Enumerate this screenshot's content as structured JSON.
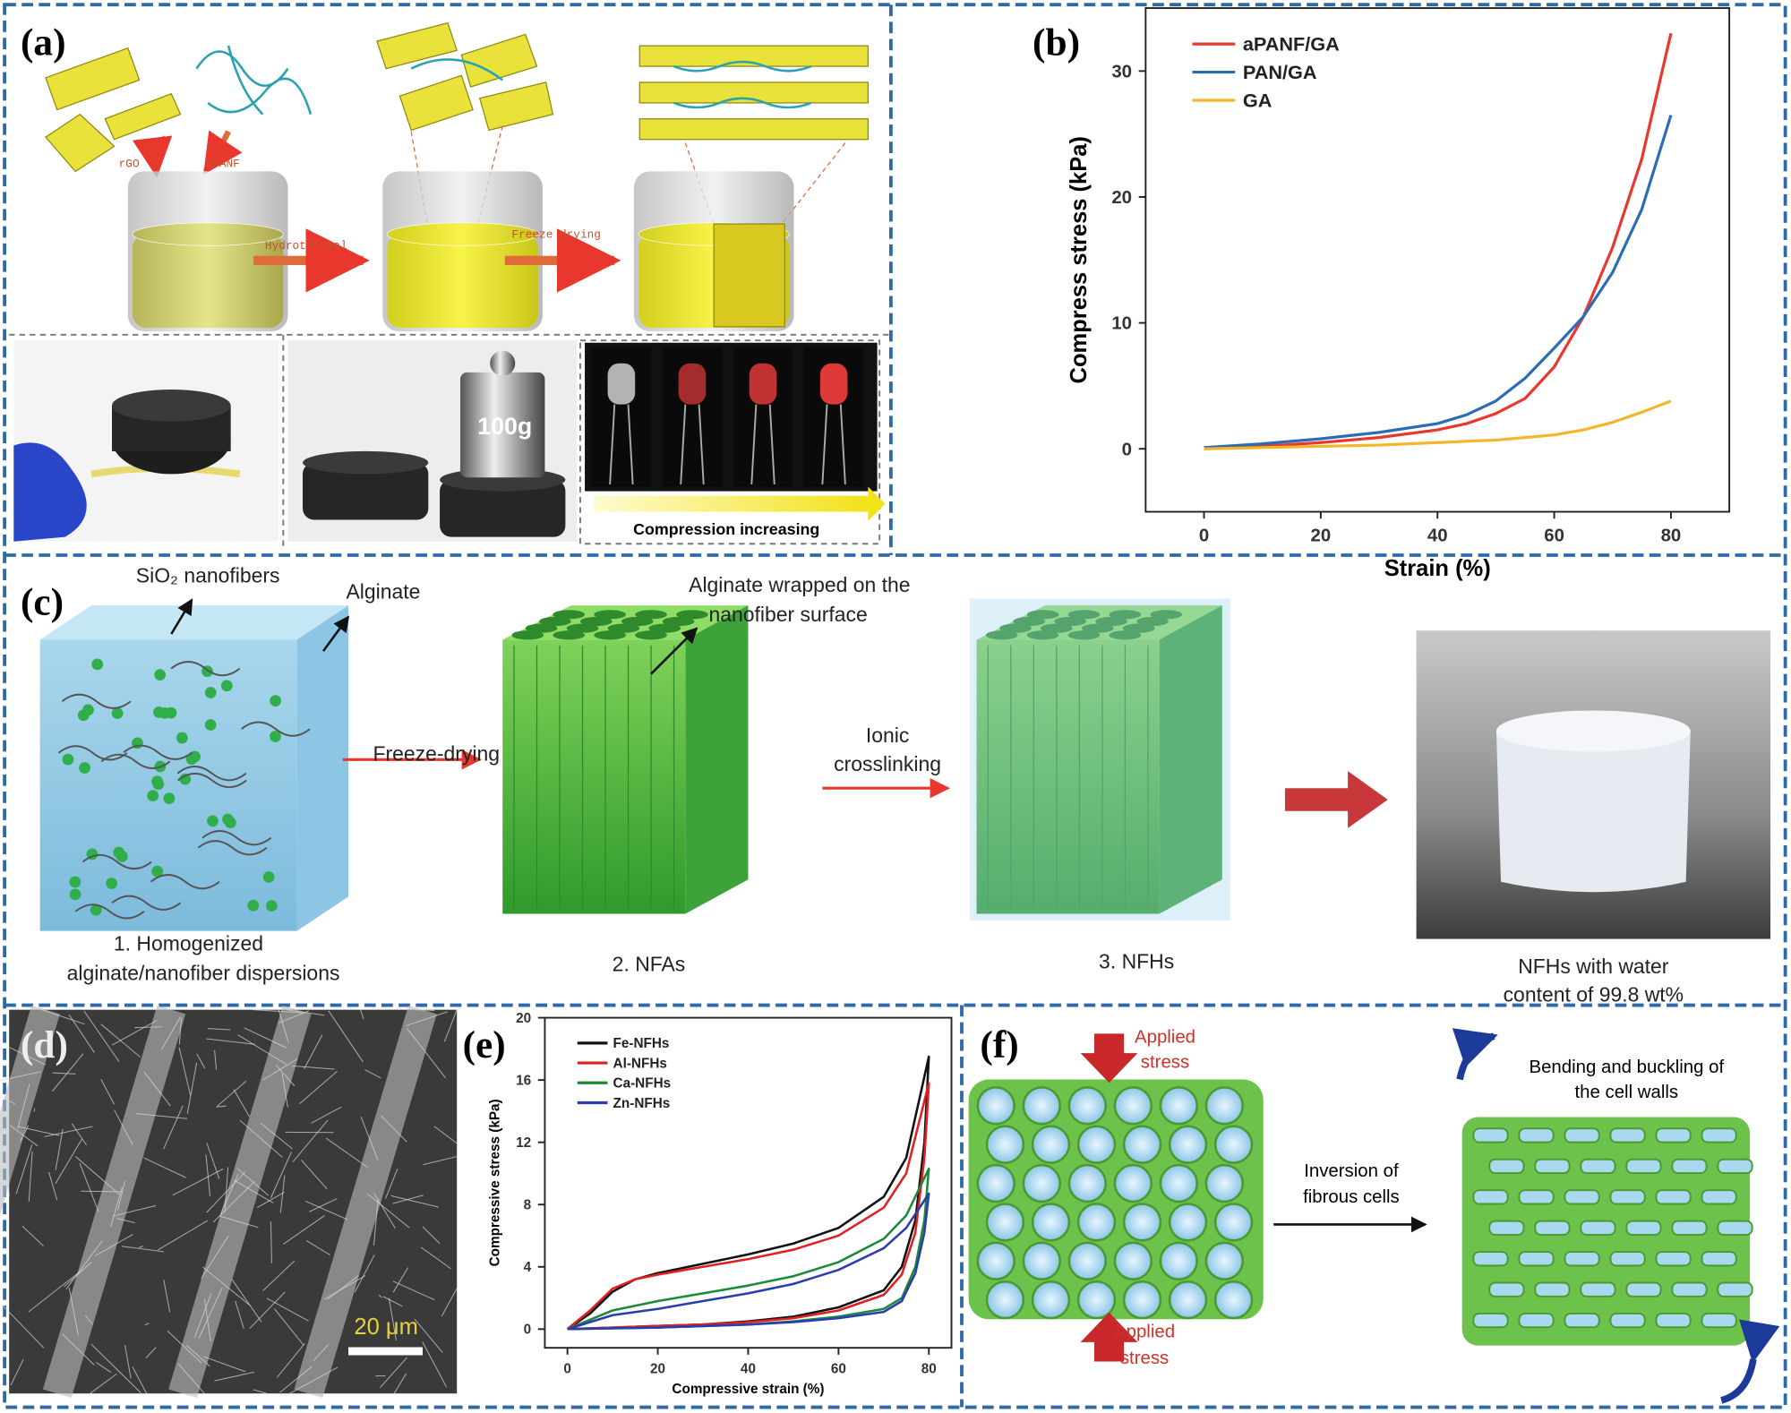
{
  "chart_data": [
    {
      "type": "line",
      "xlabel": "Strain (%)",
      "ylabel": "Compress stress (kPa)",
      "x": [
        0,
        10,
        20,
        30,
        40,
        45,
        50,
        55,
        60,
        65,
        70,
        75,
        80
      ],
      "series": [
        {
          "name": "aPANF/GA",
          "color": "#e8372c",
          "values": [
            0,
            0.2,
            0.5,
            0.9,
            1.5,
            2,
            2.8,
            4,
            6.5,
            10.5,
            16,
            23,
            33
          ]
        },
        {
          "name": "PAN/GA",
          "color": "#2a6db5",
          "values": [
            0.1,
            0.4,
            0.8,
            1.3,
            2,
            2.7,
            3.8,
            5.6,
            8,
            10.5,
            14,
            19,
            26.5
          ]
        },
        {
          "name": "GA",
          "color": "#f5b52b",
          "values": [
            0,
            0.1,
            0.2,
            0.3,
            0.5,
            0.6,
            0.7,
            0.9,
            1.1,
            1.5,
            2.1,
            2.9,
            3.8
          ]
        }
      ],
      "xlim": [
        -10,
        90
      ],
      "ylim": [
        -5,
        35
      ],
      "xticks": [
        0,
        20,
        40,
        60,
        80
      ],
      "yticks": [
        0,
        10,
        20,
        30
      ],
      "legend": "upper left"
    },
    {
      "type": "line",
      "xlabel": "Compressive strain (%)",
      "ylabel": "Compressive stress (kPa)",
      "series": [
        {
          "name": "Fe-NFHs",
          "color": "#111111",
          "x": [
            0,
            5,
            10,
            15,
            20,
            30,
            40,
            50,
            60,
            70,
            75,
            80,
            79,
            77,
            74,
            70,
            60,
            50,
            40,
            30,
            20,
            10,
            0
          ],
          "values": [
            0,
            1,
            2.4,
            3.2,
            3.6,
            4.2,
            4.8,
            5.5,
            6.5,
            8.5,
            11,
            17.5,
            12,
            7,
            4,
            2.5,
            1.4,
            0.8,
            0.5,
            0.3,
            0.2,
            0.1,
            0
          ]
        },
        {
          "name": "Al-NFHs",
          "color": "#e02020",
          "x": [
            0,
            5,
            10,
            15,
            20,
            30,
            40,
            50,
            60,
            70,
            75,
            80,
            79,
            77,
            74,
            70,
            60,
            50,
            40,
            30,
            20,
            10,
            0
          ],
          "values": [
            0,
            1.2,
            2.6,
            3.2,
            3.5,
            4,
            4.5,
            5.1,
            6,
            7.8,
            10,
            15.8,
            11,
            6.2,
            3.5,
            2.2,
            1.2,
            0.7,
            0.45,
            0.3,
            0.2,
            0.1,
            0
          ]
        },
        {
          "name": "Ca-NFHs",
          "color": "#1a8a3a",
          "x": [
            0,
            10,
            20,
            30,
            40,
            50,
            60,
            70,
            75,
            80,
            79,
            77,
            74,
            70,
            60,
            50,
            40,
            20,
            0
          ],
          "values": [
            0,
            1.2,
            1.8,
            2.3,
            2.8,
            3.4,
            4.3,
            5.8,
            7.3,
            10.3,
            7,
            4,
            2,
            1.3,
            0.8,
            0.5,
            0.3,
            0.1,
            0
          ]
        },
        {
          "name": "Zn-NFHs",
          "color": "#2a3db0",
          "x": [
            0,
            10,
            20,
            30,
            40,
            50,
            60,
            70,
            75,
            80,
            79,
            77,
            74,
            70,
            60,
            50,
            40,
            20,
            0
          ],
          "values": [
            0,
            0.9,
            1.3,
            1.8,
            2.3,
            2.9,
            3.8,
            5.2,
            6.5,
            8.7,
            6.2,
            3.6,
            1.8,
            1.1,
            0.7,
            0.45,
            0.3,
            0.1,
            0
          ]
        }
      ],
      "xlim": [
        -5,
        85
      ],
      "ylim": [
        -1.2,
        20
      ],
      "xticks": [
        0,
        20,
        40,
        60,
        80
      ],
      "yticks": [
        0,
        4,
        8,
        12,
        16,
        20
      ],
      "legend": "upper left"
    }
  ],
  "panel_labels": [
    "(a)",
    "(b)",
    "(c)",
    "(d)",
    "(e)",
    "(f)"
  ],
  "panel_a": {
    "reagents": [
      "rGO",
      "aPANF"
    ],
    "steps": [
      "Hydrothermal",
      "Freeze drying"
    ],
    "weight": "100g",
    "caption": "Compression increasing"
  },
  "panel_c": {
    "fiber_label": "SiO₂ nanofibers",
    "alginate_label": "Alginate",
    "wrap_label": [
      "Alginate wrapped on the",
      "nanofiber surface"
    ],
    "step1": "Freeze-drying",
    "step2": [
      "Ionic",
      "crosslinking"
    ],
    "stage1": [
      "1. Homogenized",
      "alginate/nanofiber dispersions"
    ],
    "stage2": "2. NFAs",
    "stage3": "3. NFHs",
    "photo_caption": [
      "NFHs with water",
      "content of 99.8 wt%"
    ]
  },
  "panel_d": {
    "scale_bar": "20 μm"
  },
  "panel_f": {
    "stress_top": [
      "Applied",
      "stress"
    ],
    "stress_bottom": [
      "Applied",
      "stress"
    ],
    "result": [
      "Bending and buckling of",
      "the cell walls"
    ],
    "process": [
      "Inversion of",
      "fibrous cells"
    ]
  }
}
